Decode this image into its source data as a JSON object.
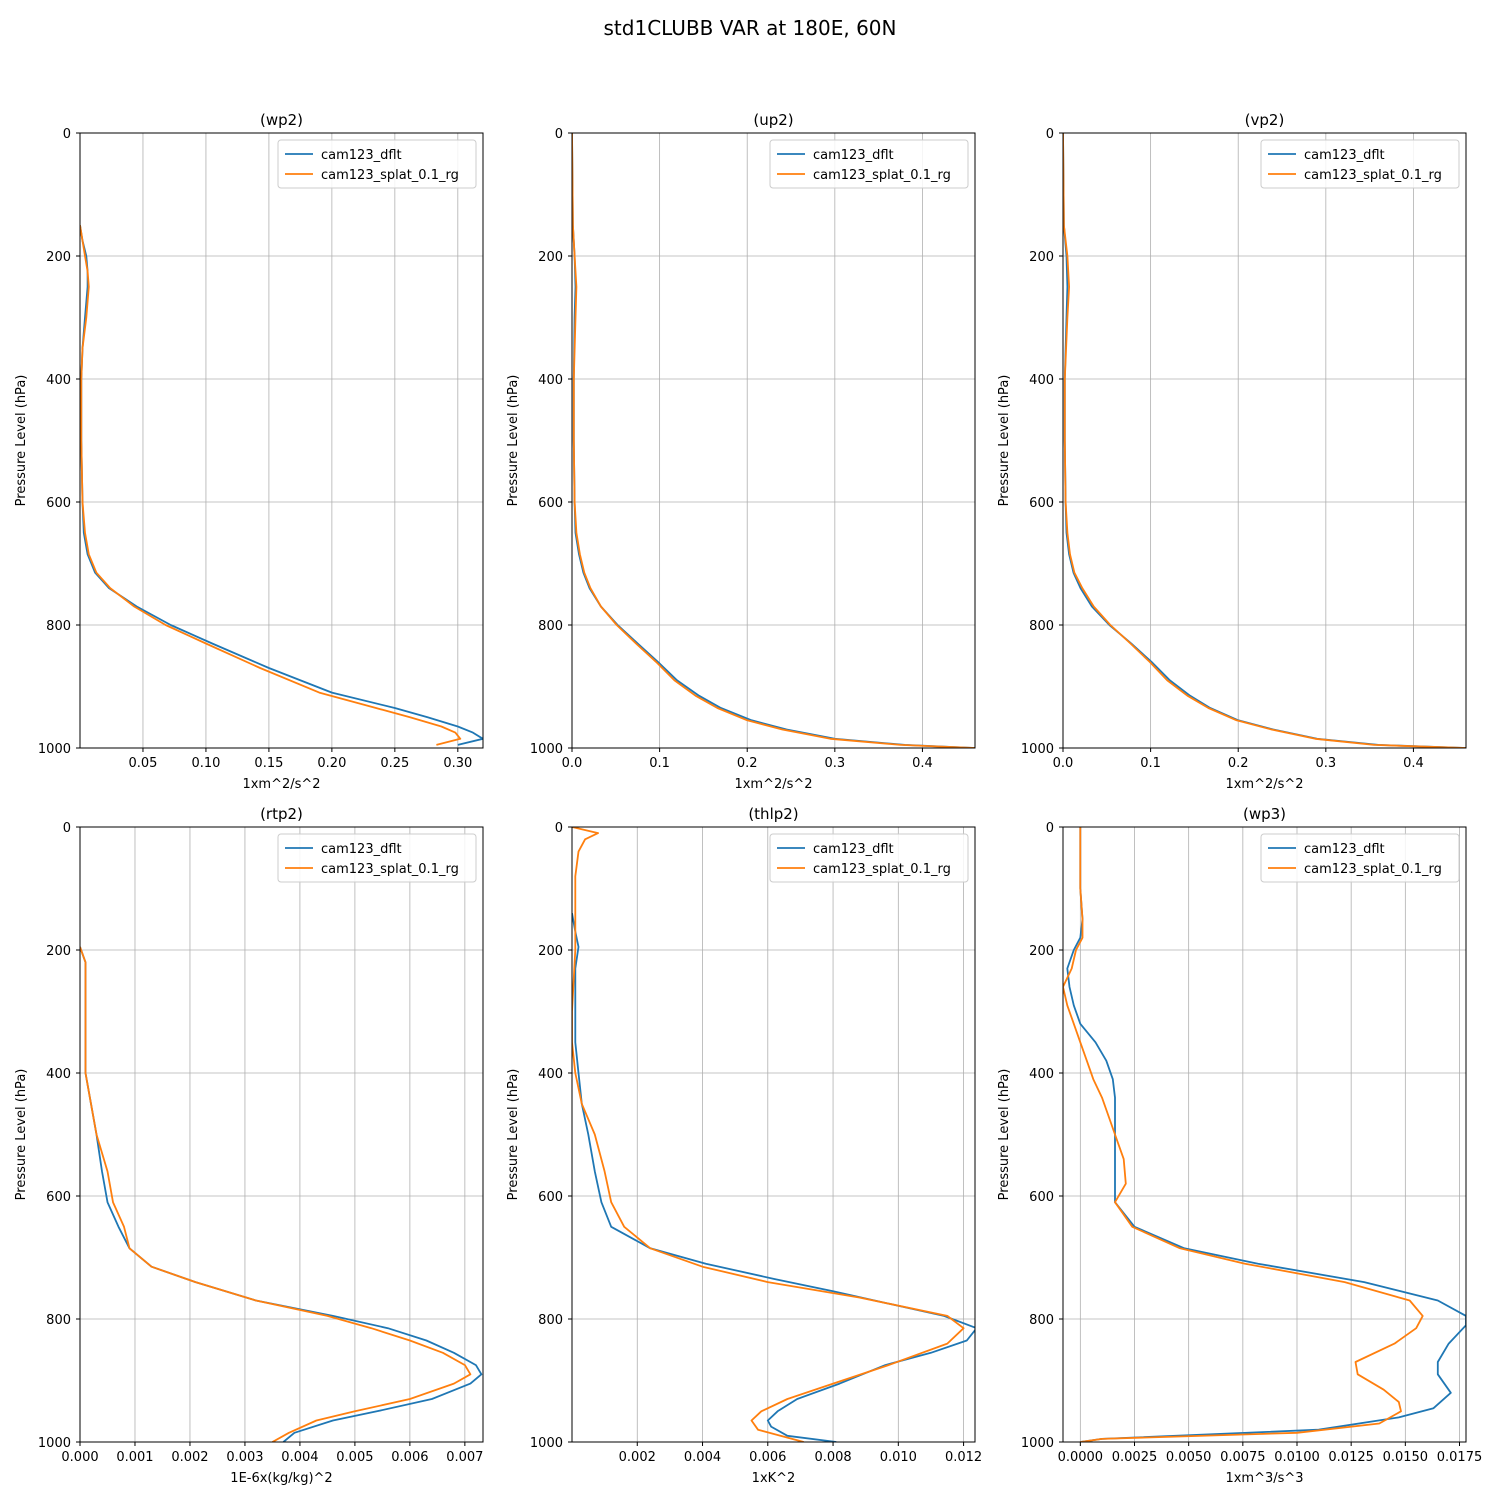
{
  "figure": {
    "suptitle": "std1CLUBB VAR at 180E, 60N",
    "ylabel": "Pressure Level (hPa)",
    "ylim": [
      1000,
      0
    ],
    "yticks": [
      0,
      200,
      400,
      600,
      800,
      1000
    ],
    "grid": true,
    "legend_placement": "upper-right",
    "colors": {
      "cam123_dflt": "#1f77b4",
      "cam123_splat_0.1_rg": "#ff7f0e"
    }
  },
  "chart_data": [
    {
      "type": "line",
      "title": "(wp2)",
      "xlabel": "1xm^2/s^2",
      "ylabel": "Pressure Level (hPa)",
      "xlim": [
        0,
        0.32
      ],
      "ylim": [
        1000,
        0
      ],
      "xticks": [
        0.05,
        0.1,
        0.15,
        0.2,
        0.25,
        0.3
      ],
      "xtick_labels": [
        "0.05",
        "0.10",
        "0.15",
        "0.20",
        "0.25",
        "0.30"
      ],
      "legend": [
        "cam123_dflt",
        "cam123_splat_0.1_rg"
      ],
      "series": [
        {
          "name": "cam123_dflt",
          "y": [
            150,
            175,
            200,
            225,
            250,
            300,
            350,
            400,
            500,
            600,
            650,
            685,
            715,
            740,
            770,
            800,
            830,
            870,
            910,
            935,
            950,
            965,
            975,
            985,
            995
          ],
          "x": [
            0.0,
            0.002,
            0.005,
            0.006,
            0.006,
            0.004,
            0.002,
            0.001,
            0.001,
            0.002,
            0.003,
            0.006,
            0.012,
            0.023,
            0.045,
            0.072,
            0.105,
            0.15,
            0.2,
            0.25,
            0.276,
            0.3,
            0.312,
            0.32,
            0.3
          ]
        },
        {
          "name": "cam123_splat_0.1_rg",
          "y": [
            150,
            175,
            200,
            225,
            250,
            300,
            350,
            400,
            500,
            600,
            650,
            685,
            715,
            740,
            770,
            800,
            830,
            870,
            910,
            935,
            950,
            965,
            975,
            985,
            995
          ],
          "x": [
            0.0,
            0.002,
            0.004,
            0.006,
            0.007,
            0.005,
            0.002,
            0.001,
            0.001,
            0.002,
            0.004,
            0.007,
            0.013,
            0.024,
            0.043,
            0.068,
            0.1,
            0.143,
            0.19,
            0.235,
            0.262,
            0.287,
            0.298,
            0.302,
            0.283
          ]
        }
      ]
    },
    {
      "type": "line",
      "title": "(up2)",
      "xlabel": "1xm^2/s^2",
      "ylabel": "Pressure Level (hPa)",
      "xlim": [
        0,
        0.46
      ],
      "ylim": [
        1000,
        0
      ],
      "xticks": [
        0.0,
        0.1,
        0.2,
        0.3,
        0.4
      ],
      "xtick_labels": [
        "0.0",
        "0.1",
        "0.2",
        "0.3",
        "0.4"
      ],
      "legend": [
        "cam123_dflt",
        "cam123_splat_0.1_rg"
      ],
      "series": [
        {
          "name": "cam123_dflt",
          "y": [
            0,
            150,
            200,
            250,
            300,
            400,
            500,
            600,
            650,
            685,
            715,
            740,
            770,
            800,
            830,
            860,
            890,
            915,
            935,
            955,
            970,
            985,
            995,
            1000
          ],
          "x": [
            0.0,
            0.001,
            0.003,
            0.004,
            0.003,
            0.002,
            0.002,
            0.003,
            0.004,
            0.008,
            0.013,
            0.02,
            0.033,
            0.052,
            0.075,
            0.098,
            0.12,
            0.145,
            0.17,
            0.205,
            0.245,
            0.3,
            0.38,
            0.46
          ]
        },
        {
          "name": "cam123_splat_0.1_rg",
          "y": [
            0,
            150,
            200,
            250,
            300,
            400,
            500,
            600,
            650,
            685,
            715,
            740,
            770,
            800,
            830,
            860,
            890,
            915,
            935,
            955,
            970,
            985,
            995,
            1000
          ],
          "x": [
            0.0,
            0.001,
            0.003,
            0.005,
            0.004,
            0.002,
            0.002,
            0.003,
            0.005,
            0.009,
            0.014,
            0.021,
            0.033,
            0.051,
            0.073,
            0.096,
            0.117,
            0.141,
            0.166,
            0.2,
            0.24,
            0.295,
            0.375,
            0.46
          ]
        }
      ]
    },
    {
      "type": "line",
      "title": "(vp2)",
      "xlabel": "1xm^2/s^2",
      "ylabel": "Pressure Level (hPa)",
      "xlim": [
        0,
        0.46
      ],
      "ylim": [
        1000,
        0
      ],
      "xticks": [
        0.0,
        0.1,
        0.2,
        0.3,
        0.4
      ],
      "xtick_labels": [
        "0.0",
        "0.1",
        "0.2",
        "0.3",
        "0.4"
      ],
      "legend": [
        "cam123_dflt",
        "cam123_splat_0.1_rg"
      ],
      "series": [
        {
          "name": "cam123_dflt",
          "y": [
            0,
            150,
            200,
            250,
            300,
            400,
            500,
            600,
            650,
            685,
            715,
            740,
            770,
            800,
            830,
            860,
            890,
            915,
            935,
            955,
            970,
            985,
            995,
            1000
          ],
          "x": [
            0.0,
            0.001,
            0.004,
            0.005,
            0.004,
            0.002,
            0.002,
            0.003,
            0.004,
            0.007,
            0.012,
            0.02,
            0.033,
            0.053,
            0.078,
            0.101,
            0.122,
            0.145,
            0.168,
            0.2,
            0.24,
            0.29,
            0.36,
            0.46
          ]
        },
        {
          "name": "cam123_splat_0.1_rg",
          "y": [
            0,
            150,
            200,
            250,
            300,
            400,
            500,
            600,
            650,
            685,
            715,
            740,
            770,
            800,
            830,
            860,
            890,
            915,
            935,
            955,
            970,
            985,
            995,
            1000
          ],
          "x": [
            0.0,
            0.001,
            0.005,
            0.007,
            0.005,
            0.002,
            0.002,
            0.003,
            0.005,
            0.008,
            0.013,
            0.022,
            0.035,
            0.054,
            0.077,
            0.099,
            0.119,
            0.142,
            0.166,
            0.198,
            0.238,
            0.288,
            0.355,
            0.46
          ]
        }
      ]
    },
    {
      "type": "line",
      "title": "(rtp2)",
      "xlabel": "1E-6x(kg/kg)^2",
      "ylabel": "Pressure Level (hPa)",
      "xlim": [
        0,
        0.00733
      ],
      "ylim": [
        1000,
        0
      ],
      "xticks": [
        0.0,
        0.001,
        0.002,
        0.003,
        0.004,
        0.005,
        0.006,
        0.007
      ],
      "xtick_labels": [
        "0.000",
        "0.001",
        "0.002",
        "0.003",
        "0.004",
        "0.005",
        "0.006",
        "0.007"
      ],
      "legend": [
        "cam123_dflt",
        "cam123_splat_0.1_rg"
      ],
      "series": [
        {
          "name": "cam123_dflt",
          "y": [
            195,
            220,
            260,
            300,
            350,
            400,
            450,
            500,
            560,
            610,
            650,
            685,
            715,
            740,
            770,
            795,
            815,
            835,
            855,
            875,
            890,
            905,
            930,
            950,
            965,
            985,
            1000
          ],
          "x": [
            0.0,
            0.0001,
            0.0001,
            0.0001,
            0.0001,
            0.0001,
            0.0002,
            0.0003,
            0.0004,
            0.0005,
            0.0007,
            0.0009,
            0.0013,
            0.0021,
            0.0032,
            0.0046,
            0.0056,
            0.0063,
            0.0068,
            0.0072,
            0.0073,
            0.0071,
            0.0064,
            0.0054,
            0.0046,
            0.0039,
            0.0037
          ]
        },
        {
          "name": "cam123_splat_0.1_rg",
          "y": [
            195,
            220,
            260,
            300,
            350,
            400,
            450,
            500,
            560,
            610,
            650,
            685,
            715,
            740,
            770,
            795,
            815,
            835,
            855,
            875,
            890,
            905,
            930,
            950,
            965,
            985,
            1000
          ],
          "x": [
            0.0,
            0.0001,
            0.0001,
            0.0001,
            0.0001,
            0.0001,
            0.0002,
            0.0003,
            0.0005,
            0.0006,
            0.0008,
            0.0009,
            0.0013,
            0.0021,
            0.0032,
            0.0045,
            0.0053,
            0.006,
            0.0066,
            0.007,
            0.0071,
            0.0068,
            0.006,
            0.005,
            0.0043,
            0.0038,
            0.0035
          ]
        }
      ]
    },
    {
      "type": "line",
      "title": "(thlp2)",
      "xlabel": "1xK^2",
      "ylabel": "Pressure Level (hPa)",
      "xlim": [
        0,
        0.01235
      ],
      "ylim": [
        1000,
        0
      ],
      "xticks": [
        0.002,
        0.004,
        0.006,
        0.008,
        0.01,
        0.012
      ],
      "xtick_labels": [
        "0.002",
        "0.004",
        "0.006",
        "0.008",
        "0.010",
        "0.012"
      ],
      "legend": [
        "cam123_dflt",
        "cam123_splat_0.1_rg"
      ],
      "series": [
        {
          "name": "cam123_dflt",
          "y": [
            140,
            170,
            195,
            230,
            300,
            350,
            400,
            450,
            500,
            560,
            610,
            650,
            685,
            710,
            735,
            755,
            775,
            795,
            815,
            835,
            855,
            875,
            905,
            930,
            950,
            965,
            975,
            990,
            1000
          ],
          "x": [
            0.0,
            0.0001,
            0.0002,
            0.0001,
            0.0001,
            0.0001,
            0.0002,
            0.0003,
            0.0005,
            0.0007,
            0.0009,
            0.0012,
            0.0024,
            0.0041,
            0.0062,
            0.008,
            0.0097,
            0.0114,
            0.0124,
            0.0121,
            0.011,
            0.0096,
            0.0082,
            0.0069,
            0.0063,
            0.006,
            0.0061,
            0.0066,
            0.0081
          ]
        },
        {
          "name": "cam123_splat_0.1_rg",
          "y": [
            0,
            10,
            20,
            40,
            80,
            140,
            200,
            300,
            350,
            400,
            450,
            500,
            560,
            610,
            650,
            685,
            715,
            740,
            765,
            795,
            815,
            840,
            875,
            905,
            930,
            950,
            965,
            980,
            1000
          ],
          "x": [
            0.0,
            0.0008,
            0.0004,
            0.0002,
            0.0001,
            0.0001,
            0.0001,
            0.0,
            0.0,
            0.0001,
            0.0003,
            0.0007,
            0.001,
            0.0012,
            0.0016,
            0.0024,
            0.004,
            0.006,
            0.0088,
            0.0115,
            0.012,
            0.0115,
            0.0097,
            0.008,
            0.0066,
            0.0058,
            0.0055,
            0.0057,
            0.0071
          ]
        }
      ]
    },
    {
      "type": "line",
      "title": "(wp3)",
      "xlabel": "1xm^3/s^3",
      "ylabel": "Pressure Level (hPa)",
      "xlim": [
        -0.0008,
        0.0178
      ],
      "ylim": [
        1000,
        0
      ],
      "xticks": [
        0.0,
        0.0025,
        0.005,
        0.0075,
        0.01,
        0.0125,
        0.015,
        0.0175
      ],
      "xtick_labels": [
        "0.0000",
        "0.0025",
        "0.0050",
        "0.0075",
        "0.0100",
        "0.0125",
        "0.0150",
        "0.0175"
      ],
      "legend": [
        "cam123_dflt",
        "cam123_splat_0.1_rg"
      ],
      "series": [
        {
          "name": "cam123_dflt",
          "y": [
            0,
            50,
            100,
            150,
            180,
            200,
            230,
            260,
            290,
            320,
            350,
            380,
            410,
            440,
            470,
            500,
            540,
            580,
            610,
            650,
            685,
            710,
            740,
            770,
            795,
            810,
            840,
            870,
            890,
            920,
            945,
            960,
            980,
            995,
            1000
          ],
          "x": [
            0.0,
            0.0,
            0.0,
            0.0001,
            0.0,
            -0.0003,
            -0.0006,
            -0.0005,
            -0.0003,
            0.0,
            0.0007,
            0.0012,
            0.0015,
            0.0016,
            0.0016,
            0.0016,
            0.0016,
            0.0016,
            0.0016,
            0.0025,
            0.0048,
            0.0082,
            0.0131,
            0.0165,
            0.0178,
            0.0178,
            0.017,
            0.0165,
            0.0165,
            0.0171,
            0.0163,
            0.0147,
            0.011,
            0.001,
            0.0
          ]
        },
        {
          "name": "cam123_splat_0.1_rg",
          "y": [
            0,
            50,
            100,
            150,
            180,
            200,
            230,
            260,
            290,
            320,
            350,
            380,
            410,
            440,
            470,
            500,
            540,
            580,
            610,
            650,
            685,
            710,
            740,
            770,
            795,
            815,
            840,
            870,
            890,
            915,
            935,
            950,
            970,
            985,
            995,
            1000
          ],
          "x": [
            0.0,
            0.0,
            0.0,
            0.0001,
            0.0001,
            -0.0002,
            -0.0004,
            -0.0008,
            -0.0006,
            -0.0003,
            0.0,
            0.0003,
            0.0006,
            0.001,
            0.0013,
            0.0016,
            0.002,
            0.0021,
            0.0016,
            0.0024,
            0.0046,
            0.0076,
            0.0122,
            0.0152,
            0.0158,
            0.0155,
            0.0145,
            0.0127,
            0.0128,
            0.014,
            0.0147,
            0.0148,
            0.0138,
            0.01,
            0.001,
            0.0
          ]
        }
      ]
    }
  ]
}
